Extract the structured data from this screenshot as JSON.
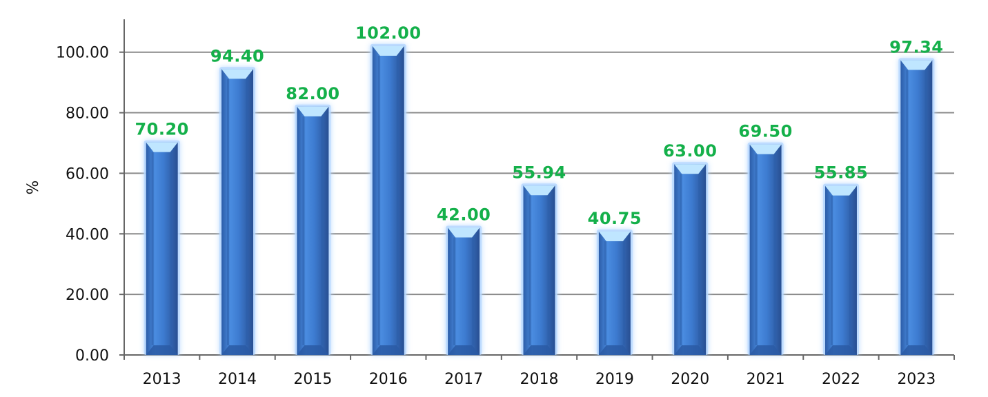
{
  "chart_data": {
    "type": "bar",
    "title": "",
    "xlabel": "",
    "ylabel": "%",
    "ylim": [
      0,
      100
    ],
    "yticks": [
      "0.00",
      "20.00",
      "40.00",
      "60.00",
      "80.00",
      "100.00"
    ],
    "categories": [
      "2013",
      "2014",
      "2015",
      "2016",
      "2017",
      "2018",
      "2019",
      "2020",
      "2021",
      "2022",
      "2023"
    ],
    "values": [
      70.2,
      94.4,
      82.0,
      102.0,
      42.0,
      55.94,
      40.75,
      63.0,
      69.5,
      55.85,
      97.34
    ],
    "value_labels": [
      "70.20",
      "94.40",
      "82.00",
      "102.00",
      "42.00",
      "55.94",
      "40.75",
      "63.00",
      "69.50",
      "55.85",
      "97.34"
    ],
    "grid": true,
    "legend": "none",
    "colors": {
      "bar": "#3f7fd1",
      "bar_dark": "#2a5aa4",
      "bar_glow": "#b6d8ff",
      "bar_top": "#bfe6ff",
      "gridline": "#8a8a8a",
      "axis": "#666666",
      "data_label": "#14b04a"
    }
  }
}
